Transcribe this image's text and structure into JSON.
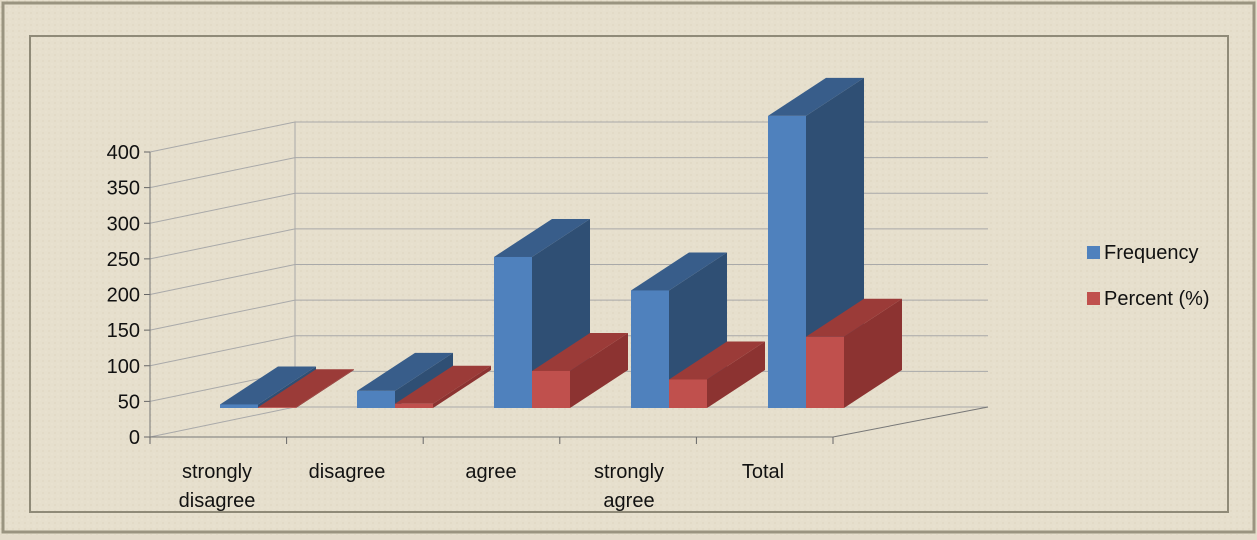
{
  "chart_data": {
    "type": "bar",
    "categories": [
      "strongly disagree",
      "disagree",
      "agree",
      "strongly agree",
      "Total"
    ],
    "series": [
      {
        "name": "Frequency",
        "values": [
          5,
          24,
          212,
          165,
          410
        ]
      },
      {
        "name": "Percent (%)",
        "values": [
          1,
          6,
          52,
          40,
          100
        ]
      }
    ],
    "ylim": [
      0,
      400
    ],
    "yticks": [
      0,
      50,
      100,
      150,
      200,
      250,
      300,
      350,
      400
    ],
    "grid": true,
    "legend": "right",
    "style": "3d-clustered-column"
  },
  "colors": {
    "frequency_front": "#4f81bd",
    "frequency_side": "#2f4f74",
    "frequency_top": "#385d8a",
    "percent_front": "#c0504d",
    "percent_side": "#8c3331",
    "percent_top": "#9b3b38",
    "grid": "#a9a9a9",
    "background": "#e6dfcd"
  }
}
